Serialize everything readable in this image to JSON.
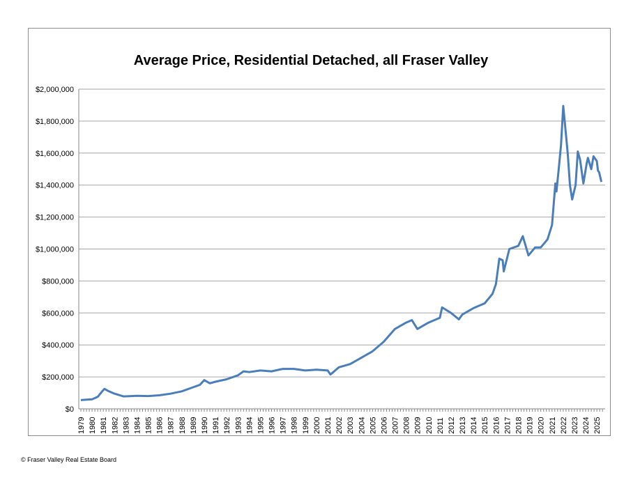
{
  "chart_data": {
    "type": "line",
    "title": "Average Price, Residential Detached, all Fraser Valley",
    "xlabel": "",
    "ylabel": "",
    "ylim": [
      0,
      2000000
    ],
    "xlim": [
      1979,
      2025.5
    ],
    "grid": true,
    "legend": "none",
    "y_ticks": [
      0,
      200000,
      400000,
      600000,
      800000,
      1000000,
      1200000,
      1400000,
      1600000,
      1800000,
      2000000
    ],
    "y_tick_labels": [
      "$0",
      "$200,000",
      "$400,000",
      "$600,000",
      "$800,000",
      "$1,000,000",
      "$1,200,000",
      "$1,400,000",
      "$1,600,000",
      "$1,800,000",
      "$2,000,000"
    ],
    "x_tick_labels": [
      "1979",
      "1980",
      "1981",
      "1982",
      "1983",
      "1984",
      "1985",
      "1986",
      "1987",
      "1988",
      "1989",
      "1990",
      "1991",
      "1992",
      "1993",
      "1994",
      "1995",
      "1996",
      "1997",
      "1998",
      "1999",
      "2000",
      "2001",
      "2002",
      "2003",
      "2004",
      "2005",
      "2006",
      "2007",
      "2008",
      "2009",
      "2010",
      "2011",
      "2012",
      "2013",
      "2014",
      "2015",
      "2016",
      "2017",
      "2018",
      "2019",
      "2020",
      "2021",
      "2022",
      "2023",
      "2024",
      "2025"
    ],
    "series": [
      {
        "name": "Average Price",
        "color": "#4a7ebb",
        "x": [
          1979,
          1980,
          1980.5,
          1980.9,
          1981.1,
          1981.5,
          1982,
          1982.8,
          1984,
          1985,
          1986,
          1987,
          1988,
          1989,
          1989.6,
          1990,
          1990.5,
          1991,
          1992,
          1993,
          1993.5,
          1994,
          1995,
          1996,
          1997,
          1998,
          1999,
          2000,
          2001,
          2001.25,
          2002,
          2003,
          2004,
          2005,
          2006,
          2007,
          2008,
          2008.5,
          2009,
          2010,
          2011,
          2011.2,
          2012,
          2012.7,
          2013,
          2014,
          2015,
          2015.7,
          2016,
          2016.3,
          2016.6,
          2016.7,
          2017.2,
          2018,
          2018.4,
          2018.9,
          2019.5,
          2020,
          2020.6,
          2021,
          2021.3,
          2021.4,
          2021.6,
          2021.8,
          2022,
          2022.4,
          2022.6,
          2022.8,
          2023.1,
          2023.3,
          2023.5,
          2023.8,
          2024.1,
          2024.2,
          2024.5,
          2024.7,
          2025,
          2025.1,
          2025.2,
          2025.4
        ],
        "values": [
          55000,
          60000,
          75000,
          110000,
          125000,
          110000,
          95000,
          78000,
          82000,
          80000,
          85000,
          95000,
          110000,
          135000,
          150000,
          180000,
          160000,
          170000,
          185000,
          210000,
          235000,
          230000,
          240000,
          235000,
          250000,
          250000,
          240000,
          245000,
          240000,
          215000,
          260000,
          280000,
          320000,
          360000,
          420000,
          500000,
          540000,
          555000,
          500000,
          540000,
          570000,
          635000,
          600000,
          560000,
          590000,
          630000,
          660000,
          720000,
          780000,
          940000,
          930000,
          860000,
          1000000,
          1020000,
          1080000,
          960000,
          1010000,
          1010000,
          1060000,
          1150000,
          1410000,
          1360000,
          1500000,
          1650000,
          1895000,
          1600000,
          1400000,
          1310000,
          1400000,
          1610000,
          1560000,
          1410000,
          1540000,
          1570000,
          1500000,
          1580000,
          1550000,
          1490000,
          1480000,
          1420000
        ]
      }
    ]
  },
  "footer": "© Fraser Valley Real Estate Board"
}
